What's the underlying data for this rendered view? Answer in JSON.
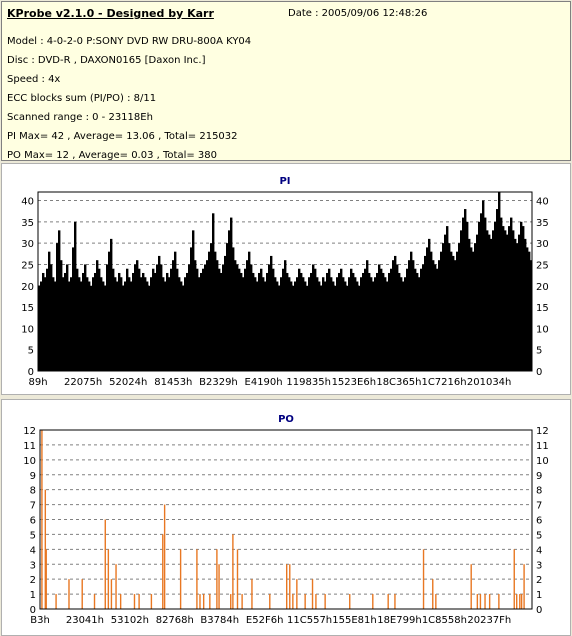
{
  "app": {
    "title": "KProbe v2.1.0 - Designed by Karr"
  },
  "info": {
    "date": "Date : 2005/09/06 12:48:26",
    "lines": [
      "Model : 4-0-2-0 P:SONY     DVD RW DRU-800A  KY04",
      "Disc : DVD-R , DAXON0165 [Daxon Inc.]",
      "Speed : 4x",
      "ECC blocks sum (PI/PO) : 8/11",
      "Scanned range : 0 - 23118Eh",
      "PI Max= 42 , Average= 13.06 , Total= 215032",
      "PO Max= 12 , Average= 0.03 , Total= 380"
    ]
  },
  "colors": {
    "pi_bars": "#000000",
    "po_bars": "#e87722",
    "title": "#000080",
    "grid": "#808080",
    "panel_bg": "#ffffff",
    "info_bg": "#ffffe1"
  },
  "chart_data": [
    {
      "type": "bar",
      "title": "PI",
      "ylim": [
        0,
        42
      ],
      "yticks": [
        0,
        5,
        10,
        15,
        20,
        25,
        30,
        35,
        40
      ],
      "grid": true,
      "xtick_labels": [
        "89h",
        "22075h",
        "52024h",
        "81453h",
        "B2329h",
        "E4190h",
        "119835h",
        "1523E6h",
        "18C365h",
        "1C7216h",
        "201034h"
      ],
      "series": [
        {
          "color": "#000000",
          "values": [
            20,
            21,
            23,
            22,
            24,
            28,
            25,
            22,
            21,
            30,
            33,
            26,
            22,
            23,
            25,
            21,
            22,
            29,
            35,
            24,
            22,
            21,
            23,
            25,
            22,
            21,
            20,
            22,
            23,
            26,
            24,
            22,
            21,
            20,
            25,
            28,
            31,
            24,
            22,
            21,
            23,
            22,
            20,
            21,
            24,
            22,
            21,
            23,
            25,
            26,
            24,
            22,
            23,
            22,
            21,
            20,
            22,
            24,
            23,
            25,
            27,
            25,
            22,
            21,
            23,
            22,
            24,
            26,
            28,
            24,
            22,
            21,
            20,
            22,
            23,
            25,
            29,
            33,
            26,
            24,
            22,
            23,
            24,
            25,
            26,
            28,
            30,
            37,
            28,
            26,
            24,
            23,
            25,
            27,
            30,
            33,
            36,
            29,
            26,
            25,
            24,
            23,
            22,
            24,
            26,
            28,
            25,
            23,
            22,
            21,
            23,
            24,
            22,
            21,
            23,
            25,
            27,
            24,
            22,
            21,
            20,
            22,
            24,
            26,
            23,
            22,
            21,
            20,
            21,
            22,
            24,
            23,
            22,
            21,
            20,
            22,
            23,
            25,
            24,
            22,
            21,
            20,
            22,
            21,
            23,
            24,
            22,
            21,
            20,
            22,
            23,
            24,
            22,
            21,
            20,
            22,
            24,
            23,
            22,
            21,
            20,
            22,
            23,
            24,
            26,
            23,
            22,
            21,
            22,
            23,
            25,
            24,
            23,
            22,
            21,
            23,
            24,
            26,
            27,
            25,
            23,
            22,
            21,
            22,
            24,
            26,
            28,
            26,
            24,
            23,
            22,
            24,
            25,
            27,
            29,
            31,
            28,
            26,
            25,
            24,
            26,
            28,
            30,
            32,
            34,
            30,
            28,
            27,
            26,
            28,
            30,
            33,
            36,
            38,
            35,
            31,
            29,
            28,
            30,
            32,
            35,
            37,
            40,
            36,
            33,
            32,
            31,
            33,
            35,
            38,
            42,
            36,
            34,
            33,
            32,
            34,
            36,
            33,
            31,
            30,
            32,
            35,
            34,
            31,
            29,
            28,
            26
          ]
        }
      ]
    },
    {
      "type": "bar",
      "title": "PO",
      "ylim": [
        0,
        12
      ],
      "yticks": [
        0,
        1,
        2,
        3,
        4,
        5,
        6,
        7,
        8,
        9,
        10,
        11,
        12
      ],
      "grid": true,
      "xtick_labels": [
        "B3h",
        "23041h",
        "53102h",
        "82768h",
        "B3784h",
        "E52F6h",
        "11C557h",
        "155E81h",
        "18E799h",
        "1C8558h",
        "20237Fh"
      ],
      "series": [
        {
          "color": "#e87722",
          "points": [
            [
              0.4,
              12
            ],
            [
              1.5,
              8
            ],
            [
              1.8,
              4
            ],
            [
              5.0,
              1
            ],
            [
              9.2,
              2
            ],
            [
              13.5,
              2
            ],
            [
              17.5,
              1
            ],
            [
              21.0,
              6
            ],
            [
              22.0,
              4
            ],
            [
              23.0,
              2
            ],
            [
              24.5,
              3
            ],
            [
              26.0,
              1
            ],
            [
              30.5,
              1
            ],
            [
              32.0,
              1
            ],
            [
              36.0,
              1
            ],
            [
              39.7,
              5
            ],
            [
              40.3,
              7
            ],
            [
              45.5,
              4
            ],
            [
              50.8,
              4
            ],
            [
              51.8,
              1
            ],
            [
              53.0,
              1
            ],
            [
              55.0,
              1
            ],
            [
              57.3,
              4
            ],
            [
              58.0,
              3
            ],
            [
              61.8,
              1
            ],
            [
              62.5,
              5
            ],
            [
              64.0,
              4
            ],
            [
              65.5,
              1
            ],
            [
              68.7,
              2
            ],
            [
              74.5,
              1
            ],
            [
              80.0,
              3
            ],
            [
              81.0,
              3
            ],
            [
              82.0,
              1
            ],
            [
              83.3,
              2
            ],
            [
              86.0,
              1
            ],
            [
              88.4,
              2
            ],
            [
              89.5,
              1
            ],
            [
              92.5,
              1
            ],
            [
              100.5,
              1
            ],
            [
              108.0,
              1
            ],
            [
              113.0,
              1
            ],
            [
              115.2,
              1
            ],
            [
              124.5,
              4
            ],
            [
              127.5,
              2
            ],
            [
              128.5,
              1
            ],
            [
              140.0,
              3
            ],
            [
              142.0,
              1
            ],
            [
              143.0,
              1
            ],
            [
              144.5,
              1
            ],
            [
              146.0,
              1
            ],
            [
              149.0,
              1
            ],
            [
              154.0,
              4
            ],
            [
              154.8,
              1
            ],
            [
              155.8,
              1
            ],
            [
              156.4,
              1
            ],
            [
              157.2,
              3
            ]
          ]
        }
      ]
    }
  ]
}
